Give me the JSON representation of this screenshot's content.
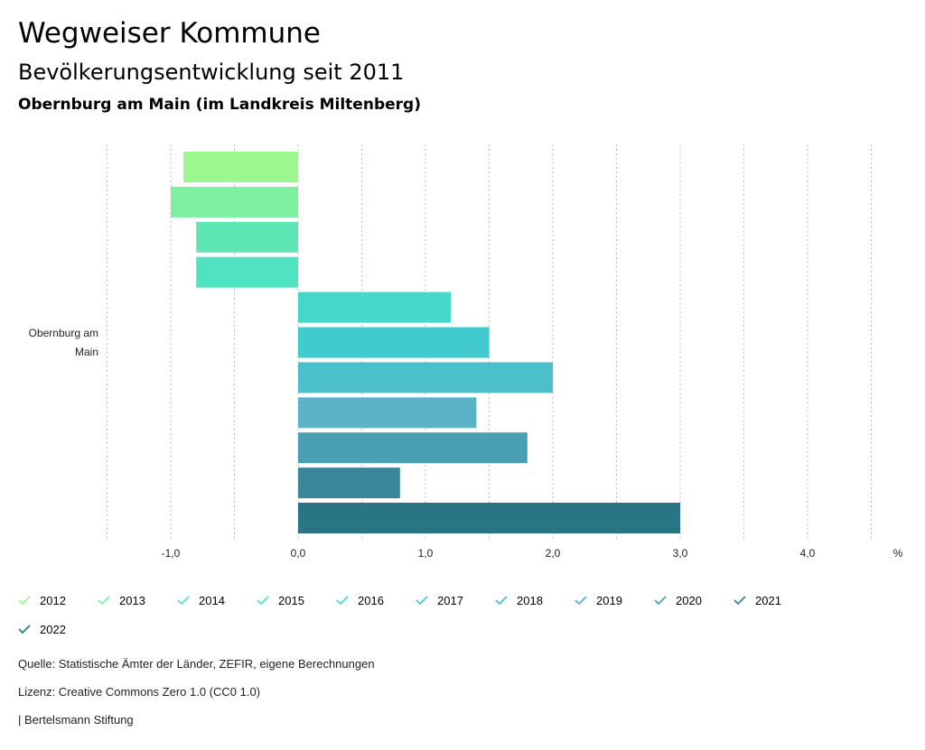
{
  "header": {
    "title": "Wegweiser Kommune",
    "subtitle": "Bevölkerungsentwicklung seit 2011",
    "region": "Obernburg am Main (im Landkreis Miltenberg)"
  },
  "chart_data": {
    "type": "bar",
    "orientation": "horizontal",
    "category_label": [
      "Obernburg am",
      "Main"
    ],
    "unit_label": "%",
    "xlim": [
      -1.5,
      4.5
    ],
    "ticks": [
      -1.0,
      0.0,
      1.0,
      2.0,
      3.0,
      4.0
    ],
    "tick_labels": [
      "-1,0",
      "0,0",
      "1,0",
      "2,0",
      "3,0",
      "4,0"
    ],
    "series": [
      {
        "name": "2012",
        "value": -0.9,
        "color": "#9cf78f"
      },
      {
        "name": "2013",
        "value": -1.0,
        "color": "#7fefa0"
      },
      {
        "name": "2014",
        "value": -0.8,
        "color": "#5ee5b4"
      },
      {
        "name": "2015",
        "value": -0.8,
        "color": "#4fe3c2"
      },
      {
        "name": "2016",
        "value": 1.2,
        "color": "#43d8c9"
      },
      {
        "name": "2017",
        "value": 1.5,
        "color": "#42cbcf"
      },
      {
        "name": "2018",
        "value": 2.0,
        "color": "#4bbfcc"
      },
      {
        "name": "2019",
        "value": 1.4,
        "color": "#5ab3c7"
      },
      {
        "name": "2020",
        "value": 1.8,
        "color": "#4a9fb2"
      },
      {
        "name": "2021",
        "value": 0.8,
        "color": "#3a8698"
      },
      {
        "name": "2022",
        "value": 3.0,
        "color": "#297585"
      }
    ]
  },
  "footer": {
    "source": "Quelle: Statistische Ämter der Länder, ZEFIR, eigene Berechnungen",
    "license": "Lizenz: Creative Commons Zero 1.0 (CC0 1.0)",
    "publisher": "| Bertelsmann Stiftung"
  }
}
